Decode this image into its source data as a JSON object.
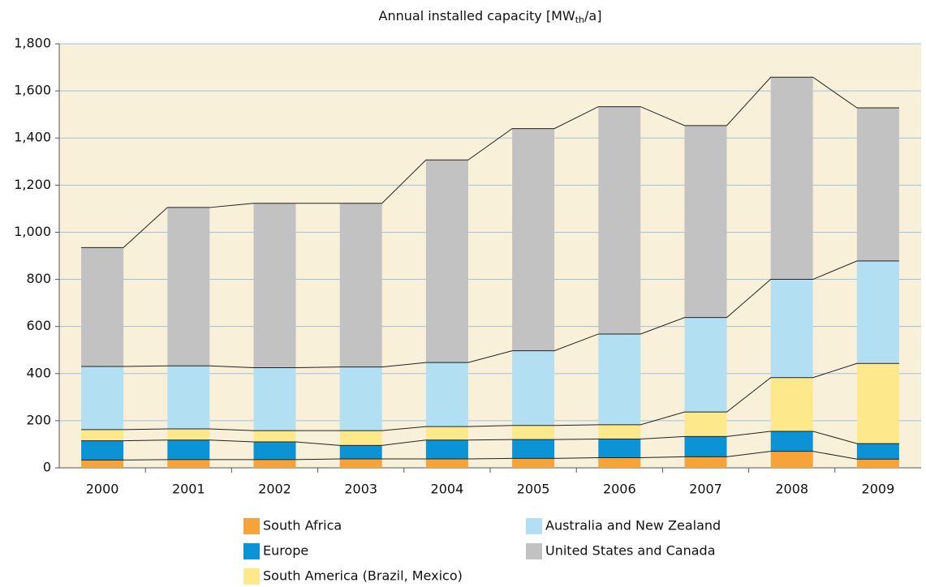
{
  "chart_data": {
    "type": "stacked_bar",
    "title": [
      "Annual installed capacity [MW",
      "th",
      "/a]"
    ],
    "categories": [
      "2000",
      "2001",
      "2002",
      "2003",
      "2004",
      "2005",
      "2006",
      "2007",
      "2008",
      "2009"
    ],
    "series": [
      {
        "name": "South Africa",
        "color": "#f6a43a",
        "values": [
          33,
          35,
          35,
          38,
          38,
          40,
          43,
          47,
          70,
          37
        ]
      },
      {
        "name": "Europe",
        "color": "#0b93d6",
        "values": [
          82,
          83,
          75,
          57,
          80,
          80,
          79,
          86,
          85,
          66
        ]
      },
      {
        "name": "South America (Brazil, Mexico)",
        "color": "#fde98b",
        "values": [
          47,
          47,
          48,
          63,
          57,
          60,
          61,
          104,
          228,
          340
        ]
      },
      {
        "name": "Australia and New Zealand",
        "color": "#b3dff3",
        "values": [
          268,
          268,
          267,
          270,
          272,
          317,
          385,
          401,
          417,
          435
        ]
      },
      {
        "name": "United States and Canada",
        "color": "#c2c2c2",
        "values": [
          505,
          672,
          698,
          695,
          860,
          943,
          965,
          815,
          858,
          650
        ]
      }
    ],
    "ylim": [
      0,
      1800
    ],
    "yticks": [
      0,
      200,
      400,
      600,
      800,
      {
        "value": 1000,
        "label": "1,000"
      },
      {
        "value": 1200,
        "label": "1,200"
      },
      {
        "value": 1400,
        "label": "1,400"
      },
      {
        "value": 1600,
        "label": "1,600"
      },
      {
        "value": 1800,
        "label": "1,800"
      }
    ],
    "grid": true
  }
}
